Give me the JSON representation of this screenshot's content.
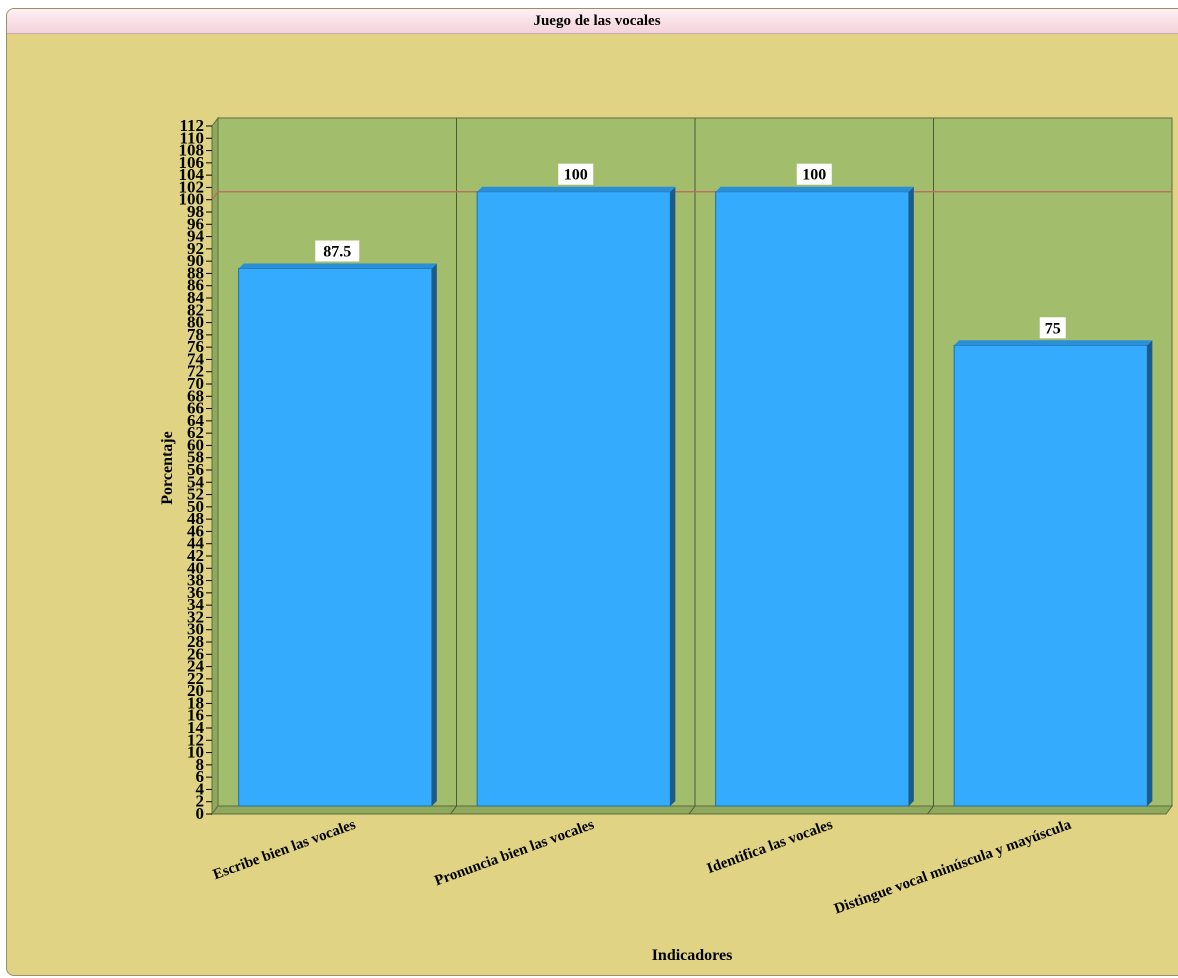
{
  "window": {
    "title": "Juego de las vocales"
  },
  "chart_data": {
    "type": "bar",
    "categories": [
      "Escribe bien las vocales",
      "Pronuncia bien las vocales",
      "Identifica las vocales",
      "Distingue vocal minúscula y mayúscula"
    ],
    "values": [
      87.5,
      100,
      100,
      75
    ],
    "data_labels": [
      "87.5",
      "100",
      "100",
      "75"
    ],
    "title": "Juego de las vocales",
    "xlabel": "Indicadores",
    "ylabel": "Porcentaje",
    "ylim": [
      0,
      112
    ],
    "ytick_step": 2,
    "reference_line": 100,
    "grid": false,
    "colors": {
      "background": "#e1d384",
      "plot_area": "#a2be6c",
      "bar_face": "#34abfc",
      "bar_side": "#1c5a8c",
      "bar_top": "#2a8fd6",
      "reference_line": "#c0665e"
    }
  }
}
